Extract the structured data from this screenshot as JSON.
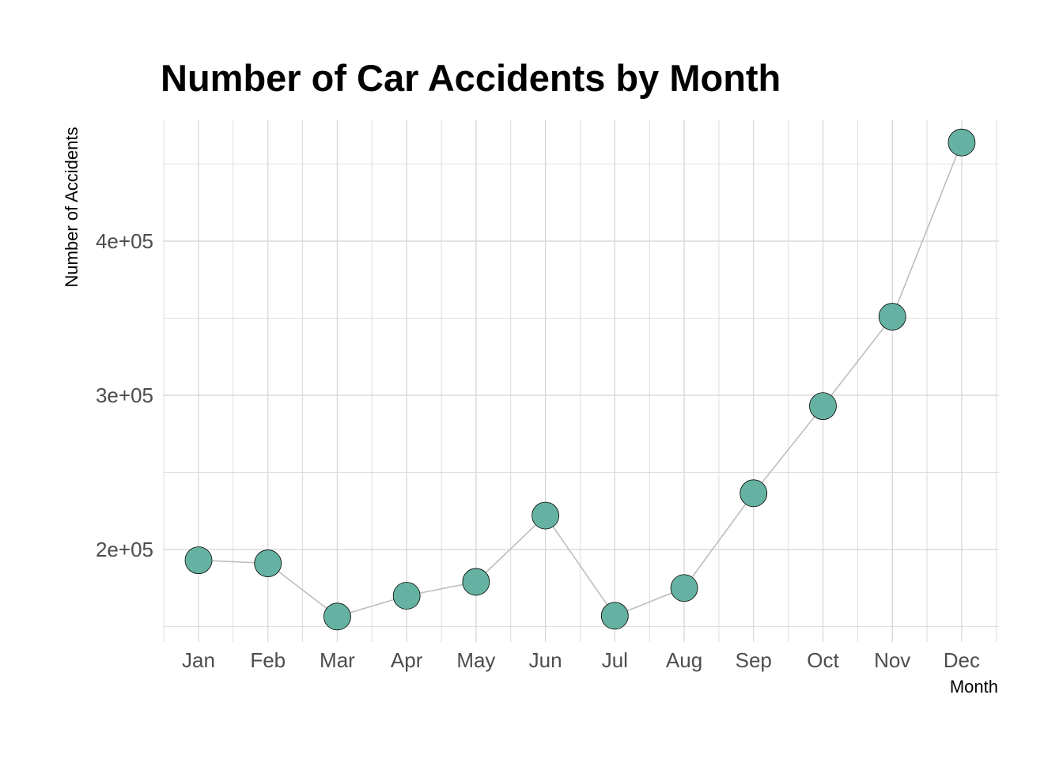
{
  "chart_data": {
    "type": "line",
    "title": "Number of Car Accidents by Month",
    "xlabel": "Month",
    "ylabel": "Number of Accidents",
    "categories": [
      "Jan",
      "Feb",
      "Mar",
      "Apr",
      "May",
      "Jun",
      "Jul",
      "Aug",
      "Sep",
      "Oct",
      "Nov",
      "Dec"
    ],
    "values": [
      193000,
      191000,
      156500,
      170000,
      179000,
      222000,
      157000,
      175000,
      236500,
      293000,
      351000,
      464000
    ],
    "ylim": [
      145000,
      475000
    ],
    "yticks": [
      200000,
      300000,
      400000
    ],
    "ytick_labels": [
      "2e+05",
      "3e+05",
      "4e+05"
    ],
    "grid": true,
    "colors": {
      "point_fill": "#66b2a2",
      "point_stroke": "#000000",
      "line": "#bdbdbd",
      "grid": "#d4d4d4"
    }
  }
}
